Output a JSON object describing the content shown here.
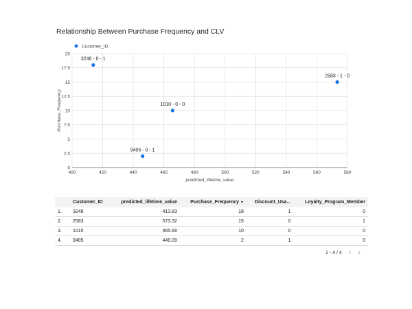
{
  "chart_data": {
    "type": "scatter",
    "title": "Relationship Between Purchase Frequency and CLV",
    "xlabel": "predicted_lifetime_value",
    "ylabel": "Purchase_Frequency",
    "xlim": [
      400,
      580
    ],
    "ylim": [
      0,
      20
    ],
    "x_ticks": [
      "400",
      "420",
      "440",
      "460",
      "480",
      "500",
      "520",
      "540",
      "560",
      "580"
    ],
    "y_ticks": [
      "0",
      "2.5",
      "5",
      "7.5",
      "10",
      "12.5",
      "15",
      "17.5",
      "20"
    ],
    "legend": "top-left",
    "grid": true,
    "series": [
      {
        "name": "Customer_ID",
        "color": "#1a73e8",
        "points": [
          {
            "x": 413.83,
            "y": 18,
            "label": "3248 - 0 - 1"
          },
          {
            "x": 573.32,
            "y": 15,
            "label": "2583 - 1 - 0"
          },
          {
            "x": 465.68,
            "y": 10,
            "label": "1010 - 0 - 0"
          },
          {
            "x": 446.09,
            "y": 2,
            "label": "9405 - 0 - 1"
          }
        ]
      }
    ]
  },
  "table": {
    "columns": [
      "Customer_ID",
      "predicted_lifetime_value",
      "Purchase_Frequency",
      "Discount_Usa...",
      "Loyalty_Program_Member"
    ],
    "sort_indicator": "▼",
    "rows": [
      {
        "idx": "1.",
        "id": "3248",
        "clv": "413.83",
        "freq": "18",
        "disc": "1",
        "loyal": "0"
      },
      {
        "idx": "2.",
        "id": "2583",
        "clv": "573.32",
        "freq": "15",
        "disc": "0",
        "loyal": "1"
      },
      {
        "idx": "3.",
        "id": "1010",
        "clv": "465.68",
        "freq": "10",
        "disc": "0",
        "loyal": "0"
      },
      {
        "idx": "4.",
        "id": "9405",
        "clv": "446.09",
        "freq": "2",
        "disc": "1",
        "loyal": "0"
      }
    ]
  },
  "pagination": {
    "label": "1 - 4 / 4",
    "prev_icon": "chevron-left-icon",
    "next_icon": "chevron-right-icon"
  }
}
